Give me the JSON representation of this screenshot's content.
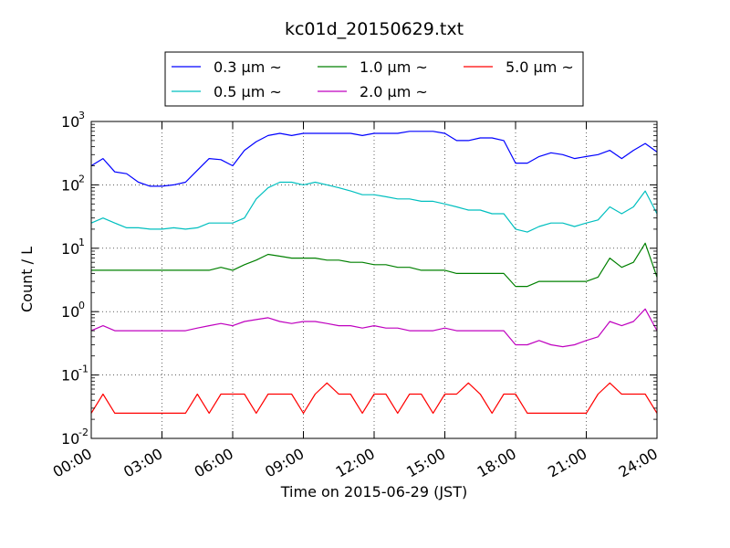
{
  "chart_data": {
    "type": "line",
    "title": "kc01d_20150629.txt",
    "xlabel": "Time on 2015-06-29 (JST)",
    "ylabel": "Count / L",
    "xlim": [
      "00:00",
      "24:00"
    ],
    "ylim": [
      0.01,
      1000
    ],
    "yscale": "log",
    "grid": true,
    "legend_position": "top-center",
    "x_ticks": [
      "00:00",
      "03:00",
      "06:00",
      "09:00",
      "12:00",
      "15:00",
      "18:00",
      "21:00",
      "24:00"
    ],
    "y_ticks": [
      {
        "value": 0.01,
        "base": "10",
        "exp": "-2"
      },
      {
        "value": 0.1,
        "base": "10",
        "exp": "-1"
      },
      {
        "value": 1,
        "base": "10",
        "exp": "0"
      },
      {
        "value": 10,
        "base": "10",
        "exp": "1"
      },
      {
        "value": 100,
        "base": "10",
        "exp": "2"
      },
      {
        "value": 1000,
        "base": "10",
        "exp": "3"
      }
    ],
    "series": [
      {
        "name": "0.3 μm ~",
        "color": "#0000ff",
        "x": [
          "00:00",
          "00:30",
          "01:00",
          "01:30",
          "02:00",
          "02:30",
          "03:00",
          "03:30",
          "04:00",
          "04:30",
          "05:00",
          "05:30",
          "06:00",
          "06:30",
          "07:00",
          "07:30",
          "08:00",
          "08:30",
          "09:00",
          "09:30",
          "10:00",
          "10:30",
          "11:00",
          "11:30",
          "12:00",
          "12:30",
          "13:00",
          "13:30",
          "14:00",
          "14:30",
          "15:00",
          "15:30",
          "16:00",
          "16:30",
          "17:00",
          "17:30",
          "18:00",
          "18:30",
          "19:00",
          "19:30",
          "20:00",
          "20:30",
          "21:00",
          "21:30",
          "22:00",
          "22:30",
          "23:00",
          "23:30",
          "24:00"
        ],
        "values": [
          200,
          260,
          160,
          150,
          110,
          95,
          95,
          100,
          110,
          170,
          260,
          250,
          200,
          350,
          480,
          600,
          650,
          600,
          650,
          650,
          650,
          650,
          650,
          600,
          650,
          650,
          650,
          700,
          700,
          700,
          650,
          500,
          500,
          550,
          550,
          500,
          220,
          220,
          280,
          320,
          300,
          260,
          280,
          300,
          350,
          260,
          350,
          450,
          330
        ]
      },
      {
        "name": "0.5 μm ~",
        "color": "#00bfbf",
        "x": [
          "00:00",
          "00:30",
          "01:00",
          "01:30",
          "02:00",
          "02:30",
          "03:00",
          "03:30",
          "04:00",
          "04:30",
          "05:00",
          "05:30",
          "06:00",
          "06:30",
          "07:00",
          "07:30",
          "08:00",
          "08:30",
          "09:00",
          "09:30",
          "10:00",
          "10:30",
          "11:00",
          "11:30",
          "12:00",
          "12:30",
          "13:00",
          "13:30",
          "14:00",
          "14:30",
          "15:00",
          "15:30",
          "16:00",
          "16:30",
          "17:00",
          "17:30",
          "18:00",
          "18:30",
          "19:00",
          "19:30",
          "20:00",
          "20:30",
          "21:00",
          "21:30",
          "22:00",
          "22:30",
          "23:00",
          "23:30",
          "24:00"
        ],
        "values": [
          25,
          30,
          25,
          21,
          21,
          20,
          20,
          21,
          20,
          21,
          25,
          25,
          25,
          30,
          60,
          90,
          110,
          110,
          100,
          110,
          100,
          90,
          80,
          70,
          70,
          65,
          60,
          60,
          55,
          55,
          50,
          45,
          40,
          40,
          35,
          35,
          20,
          18,
          22,
          25,
          25,
          22,
          25,
          28,
          45,
          35,
          45,
          80,
          35
        ]
      },
      {
        "name": "1.0 μm ~",
        "color": "#008000",
        "x": [
          "00:00",
          "00:30",
          "01:00",
          "01:30",
          "02:00",
          "02:30",
          "03:00",
          "03:30",
          "04:00",
          "04:30",
          "05:00",
          "05:30",
          "06:00",
          "06:30",
          "07:00",
          "07:30",
          "08:00",
          "08:30",
          "09:00",
          "09:30",
          "10:00",
          "10:30",
          "11:00",
          "11:30",
          "12:00",
          "12:30",
          "13:00",
          "13:30",
          "14:00",
          "14:30",
          "15:00",
          "15:30",
          "16:00",
          "16:30",
          "17:00",
          "17:30",
          "18:00",
          "18:30",
          "19:00",
          "19:30",
          "20:00",
          "20:30",
          "21:00",
          "21:30",
          "22:00",
          "22:30",
          "23:00",
          "23:30",
          "24:00"
        ],
        "values": [
          4.5,
          4.5,
          4.5,
          4.5,
          4.5,
          4.5,
          4.5,
          4.5,
          4.5,
          4.5,
          4.5,
          5,
          4.5,
          5.5,
          6.5,
          8,
          7.5,
          7,
          7,
          7,
          6.5,
          6.5,
          6,
          6,
          5.5,
          5.5,
          5,
          5,
          4.5,
          4.5,
          4.5,
          4,
          4,
          4,
          4,
          4,
          2.5,
          2.5,
          3,
          3,
          3,
          3,
          3,
          3.5,
          7,
          5,
          6,
          12,
          3.5
        ]
      },
      {
        "name": "2.0 μm ~",
        "color": "#bf00bf",
        "x": [
          "00:00",
          "00:30",
          "01:00",
          "01:30",
          "02:00",
          "02:30",
          "03:00",
          "03:30",
          "04:00",
          "04:30",
          "05:00",
          "05:30",
          "06:00",
          "06:30",
          "07:00",
          "07:30",
          "08:00",
          "08:30",
          "09:00",
          "09:30",
          "10:00",
          "10:30",
          "11:00",
          "11:30",
          "12:00",
          "12:30",
          "13:00",
          "13:30",
          "14:00",
          "14:30",
          "15:00",
          "15:30",
          "16:00",
          "16:30",
          "17:00",
          "17:30",
          "18:00",
          "18:30",
          "19:00",
          "19:30",
          "20:00",
          "20:30",
          "21:00",
          "21:30",
          "22:00",
          "22:30",
          "23:00",
          "23:30",
          "24:00"
        ],
        "values": [
          0.5,
          0.6,
          0.5,
          0.5,
          0.5,
          0.5,
          0.5,
          0.5,
          0.5,
          0.55,
          0.6,
          0.65,
          0.6,
          0.7,
          0.75,
          0.8,
          0.7,
          0.65,
          0.7,
          0.7,
          0.65,
          0.6,
          0.6,
          0.55,
          0.6,
          0.55,
          0.55,
          0.5,
          0.5,
          0.5,
          0.55,
          0.5,
          0.5,
          0.5,
          0.5,
          0.5,
          0.3,
          0.3,
          0.35,
          0.3,
          0.28,
          0.3,
          0.35,
          0.4,
          0.7,
          0.6,
          0.7,
          1.1,
          0.5
        ]
      },
      {
        "name": "5.0 μm ~",
        "color": "#ff0000",
        "x": [
          "00:00",
          "00:30",
          "01:00",
          "01:30",
          "02:00",
          "02:30",
          "03:00",
          "03:30",
          "04:00",
          "04:30",
          "05:00",
          "05:30",
          "06:00",
          "06:30",
          "07:00",
          "07:30",
          "08:00",
          "08:30",
          "09:00",
          "09:30",
          "10:00",
          "10:30",
          "11:00",
          "11:30",
          "12:00",
          "12:30",
          "13:00",
          "13:30",
          "14:00",
          "14:30",
          "15:00",
          "15:30",
          "16:00",
          "16:30",
          "17:00",
          "17:30",
          "18:00",
          "18:30",
          "19:00",
          "19:30",
          "20:00",
          "20:30",
          "21:00",
          "21:30",
          "22:00",
          "22:30",
          "23:00",
          "23:30",
          "24:00"
        ],
        "values": [
          0.025,
          0.05,
          0.025,
          0.025,
          0.025,
          0.025,
          0.025,
          0.025,
          0.025,
          0.05,
          0.025,
          0.05,
          0.05,
          0.05,
          0.025,
          0.05,
          0.05,
          0.05,
          0.025,
          0.05,
          0.075,
          0.05,
          0.05,
          0.025,
          0.05,
          0.05,
          0.025,
          0.05,
          0.05,
          0.025,
          0.05,
          0.05,
          0.075,
          0.05,
          0.025,
          0.05,
          0.05,
          0.025,
          0.025,
          0.025,
          0.025,
          0.025,
          0.025,
          0.05,
          0.075,
          0.05,
          0.05,
          0.05,
          0.025
        ]
      }
    ]
  }
}
